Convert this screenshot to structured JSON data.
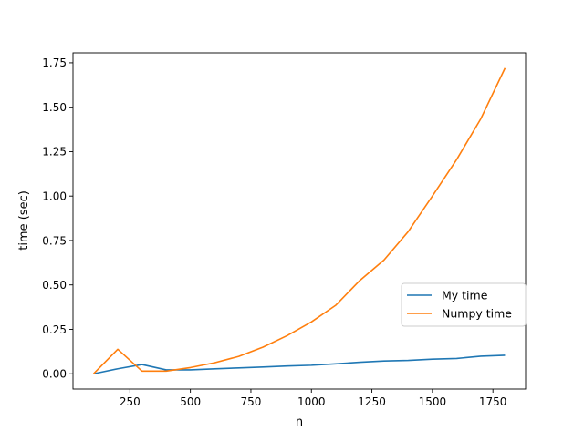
{
  "chart_data": {
    "type": "line",
    "title": "",
    "xlabel": "n",
    "ylabel": "time (sec)",
    "xlim": [
      15,
      1885
    ],
    "ylim": [
      -0.086,
      1.806
    ],
    "xticks": [
      250,
      500,
      750,
      1000,
      1250,
      1500,
      1750
    ],
    "xtick_labels": [
      "250",
      "500",
      "750",
      "1000",
      "1250",
      "1500",
      "1750"
    ],
    "yticks": [
      0,
      0.25,
      0.5,
      0.75,
      1.0,
      1.25,
      1.5,
      1.75
    ],
    "ytick_labels": [
      "0.00",
      "0.25",
      "0.50",
      "0.75",
      "1.00",
      "1.25",
      "1.50",
      "1.75"
    ],
    "grid": false,
    "legend_position": "center-right",
    "x": [
      100,
      200,
      300,
      400,
      500,
      600,
      700,
      800,
      900,
      1000,
      1100,
      1200,
      1300,
      1400,
      1500,
      1600,
      1700,
      1800
    ],
    "series": [
      {
        "name": "My time",
        "color": "#1f77b4",
        "values": [
          0.0,
          0.028,
          0.052,
          0.022,
          0.022,
          0.028,
          0.033,
          0.038,
          0.044,
          0.048,
          0.056,
          0.065,
          0.072,
          0.075,
          0.082,
          0.086,
          0.099,
          0.104
        ]
      },
      {
        "name": "Numpy time",
        "color": "#ff7f0e",
        "values": [
          0.0,
          0.138,
          0.015,
          0.015,
          0.035,
          0.062,
          0.098,
          0.15,
          0.215,
          0.292,
          0.385,
          0.525,
          0.64,
          0.8,
          1.0,
          1.205,
          1.435,
          1.72
        ]
      }
    ]
  }
}
